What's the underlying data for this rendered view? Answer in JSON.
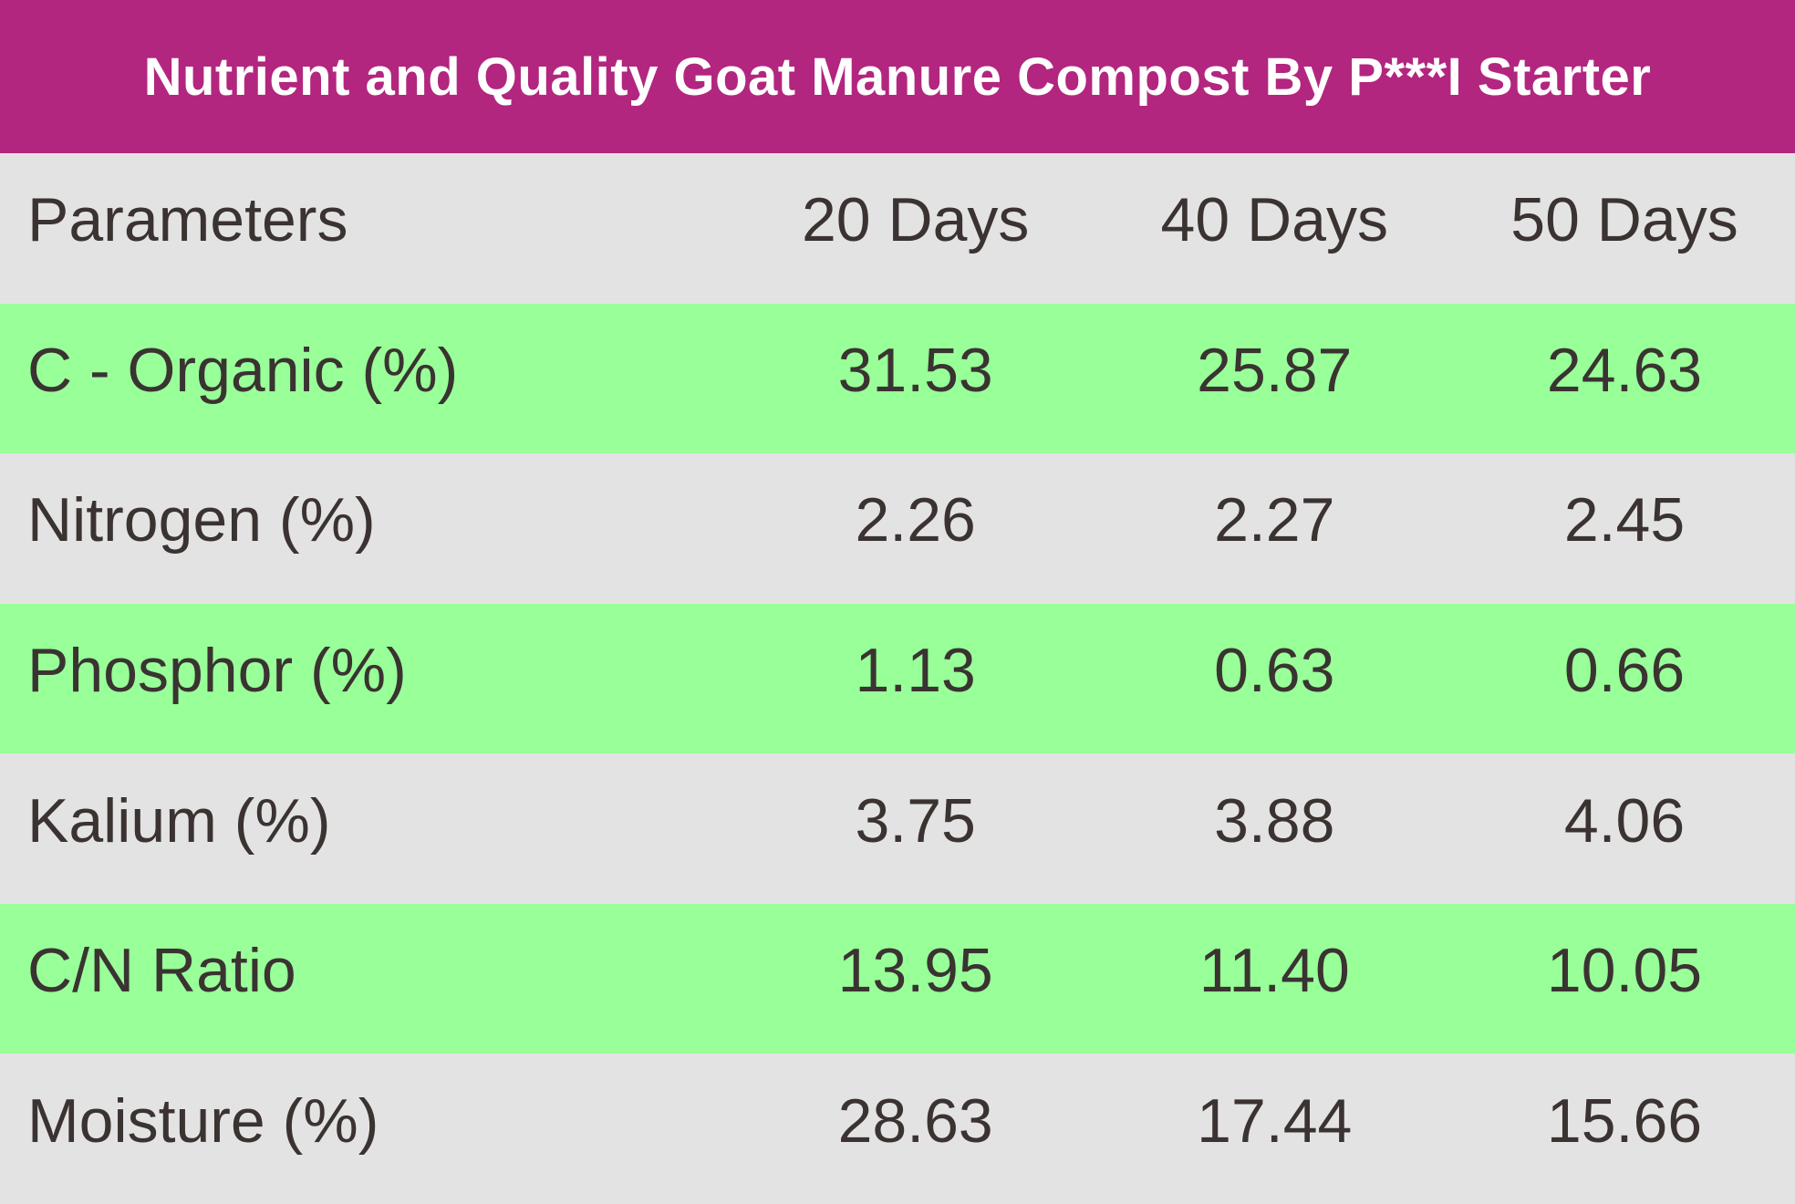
{
  "title": "Nutrient and Quality Goat Manure Compost By P***I Starter",
  "table": {
    "columns": [
      "Parameters",
      "20 Days",
      "40 Days",
      "50 Days"
    ],
    "rows": [
      {
        "parameter": "C - Organic (%)",
        "values": [
          "31.53",
          "25.87",
          "24.63"
        ]
      },
      {
        "parameter": "Nitrogen (%)",
        "values": [
          "2.26",
          "2.27",
          "2.45"
        ]
      },
      {
        "parameter": "Phosphor (%)",
        "values": [
          "1.13",
          "0.63",
          "0.66"
        ]
      },
      {
        "parameter": "Kalium (%)",
        "values": [
          "3.75",
          "3.88",
          "4.06"
        ]
      },
      {
        "parameter": "C/N Ratio",
        "values": [
          "13.95",
          "11.40",
          "10.05"
        ]
      },
      {
        "parameter": "Moisture (%)",
        "values": [
          "28.63",
          "17.44",
          "15.66"
        ]
      }
    ]
  },
  "colors": {
    "header_bg": "#B2267F",
    "header_text": "#FFFFFF",
    "row_green": "#99FF99",
    "row_gray": "#E4E3E3",
    "text": "#3A3331"
  },
  "chart_data": {
    "type": "table",
    "title": "Nutrient and Quality Goat Manure Compost By P***I Starter",
    "columns": [
      "Parameters",
      "20 Days",
      "40 Days",
      "50 Days"
    ],
    "rows": [
      [
        "C - Organic (%)",
        31.53,
        25.87,
        24.63
      ],
      [
        "Nitrogen (%)",
        2.26,
        2.27,
        2.45
      ],
      [
        "Phosphor (%)",
        1.13,
        0.63,
        0.66
      ],
      [
        "Kalium (%)",
        3.75,
        3.88,
        4.06
      ],
      [
        "C/N Ratio",
        13.95,
        11.4,
        10.05
      ],
      [
        "Moisture (%)",
        28.63,
        17.44,
        15.66
      ]
    ]
  }
}
